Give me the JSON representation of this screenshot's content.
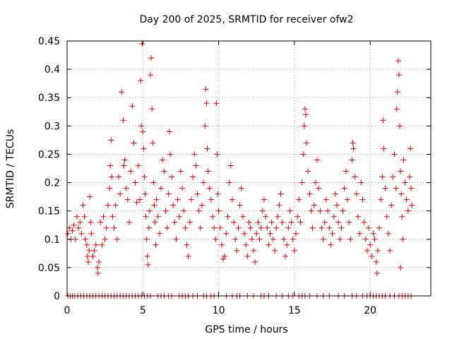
{
  "chart_data": {
    "type": "scatter",
    "title": "Day 200 of 2025, SRMTID for receiver ofw2",
    "xlabel": "GPS time / hours",
    "ylabel": "SRMTID / TECUs",
    "xlim": [
      0,
      24
    ],
    "ylim": [
      0,
      0.45
    ],
    "xticks": [
      0,
      5,
      10,
      15,
      20
    ],
    "xtick_labels": [
      "0",
      "5",
      "10",
      "15",
      "20"
    ],
    "yticks": [
      0,
      0.05,
      0.1,
      0.15,
      0.2,
      0.25,
      0.3,
      0.35,
      0.4,
      0.45
    ],
    "ytick_labels": [
      "0",
      "0.05",
      "0.1",
      "0.15",
      "0.2",
      "0.25",
      "0.3",
      "0.35",
      "0.4",
      "0.45"
    ],
    "grid": true,
    "marker": "plus",
    "series": [
      {
        "name": "SRMTID",
        "color": "#e00000",
        "points": [
          [
            0.05,
            0.11
          ],
          [
            0.15,
            0.12
          ],
          [
            0.25,
            0.1
          ],
          [
            0.35,
            0.115
          ],
          [
            0.45,
            0.125
          ],
          [
            0.55,
            0.1
          ],
          [
            0.65,
            0.14
          ],
          [
            0.75,
            0.12
          ],
          [
            0.85,
            0.13
          ],
          [
            0.95,
            0.11
          ],
          [
            1.05,
            0.16
          ],
          [
            1.15,
            0.14
          ],
          [
            1.2,
            0.1
          ],
          [
            1.3,
            0.09
          ],
          [
            1.35,
            0.07
          ],
          [
            1.4,
            0.06
          ],
          [
            1.45,
            0.08
          ],
          [
            1.5,
            0.175
          ],
          [
            1.55,
            0.13
          ],
          [
            1.6,
            0.11
          ],
          [
            1.7,
            0.07
          ],
          [
            1.8,
            0.08
          ],
          [
            1.9,
            0.09
          ],
          [
            2.0,
            0.05
          ],
          [
            2.05,
            0.04
          ],
          [
            2.1,
            0.06
          ],
          [
            2.2,
            0.13
          ],
          [
            2.3,
            0.09
          ],
          [
            2.4,
            0.14
          ],
          [
            2.5,
            0.1
          ],
          [
            2.6,
            0.12
          ],
          [
            2.7,
            0.16
          ],
          [
            2.8,
            0.19
          ],
          [
            2.85,
            0.23
          ],
          [
            2.9,
            0.275
          ],
          [
            2.95,
            0.21
          ],
          [
            3.0,
            0.14
          ],
          [
            3.1,
            0.12
          ],
          [
            3.2,
            0.16
          ],
          [
            3.3,
            0.1
          ],
          [
            3.4,
            0.21
          ],
          [
            3.5,
            0.18
          ],
          [
            3.6,
            0.36
          ],
          [
            3.7,
            0.31
          ],
          [
            3.75,
            0.23
          ],
          [
            3.8,
            0.24
          ],
          [
            3.9,
            0.19
          ],
          [
            4.0,
            0.17
          ],
          [
            4.1,
            0.13
          ],
          [
            4.2,
            0.22
          ],
          [
            4.3,
            0.335
          ],
          [
            4.4,
            0.27
          ],
          [
            4.5,
            0.2
          ],
          [
            4.6,
            0.165
          ],
          [
            4.7,
            0.23
          ],
          [
            4.8,
            0.17
          ],
          [
            4.85,
            0.38
          ],
          [
            4.9,
            0.3
          ],
          [
            4.95,
            0.445
          ],
          [
            5.0,
            0.29
          ],
          [
            5.05,
            0.26
          ],
          [
            5.1,
            0.21
          ],
          [
            5.15,
            0.18
          ],
          [
            5.2,
            0.14
          ],
          [
            5.25,
            0.1
          ],
          [
            5.3,
            0.07
          ],
          [
            5.35,
            0.055
          ],
          [
            5.4,
            0.12
          ],
          [
            5.45,
            0.15
          ],
          [
            5.5,
            0.39
          ],
          [
            5.55,
            0.42
          ],
          [
            5.6,
            0.33
          ],
          [
            5.65,
            0.27
          ],
          [
            5.7,
            0.2
          ],
          [
            5.75,
            0.16
          ],
          [
            5.8,
            0.13
          ],
          [
            5.85,
            0.09
          ],
          [
            5.9,
            0.17
          ],
          [
            6.0,
            0.14
          ],
          [
            6.1,
            0.11
          ],
          [
            6.2,
            0.19
          ],
          [
            6.3,
            0.24
          ],
          [
            6.4,
            0.22
          ],
          [
            6.5,
            0.15
          ],
          [
            6.6,
            0.12
          ],
          [
            6.7,
            0.18
          ],
          [
            6.75,
            0.29
          ],
          [
            6.8,
            0.25
          ],
          [
            6.9,
            0.21
          ],
          [
            7.0,
            0.16
          ],
          [
            7.1,
            0.13
          ],
          [
            7.2,
            0.1
          ],
          [
            7.3,
            0.17
          ],
          [
            7.4,
            0.14
          ],
          [
            7.5,
            0.22
          ],
          [
            7.6,
            0.19
          ],
          [
            7.7,
            0.15
          ],
          [
            7.8,
            0.12
          ],
          [
            7.9,
            0.09
          ],
          [
            8.0,
            0.07
          ],
          [
            8.1,
            0.13
          ],
          [
            8.2,
            0.17
          ],
          [
            8.3,
            0.21
          ],
          [
            8.4,
            0.25
          ],
          [
            8.5,
            0.23
          ],
          [
            8.6,
            0.18
          ],
          [
            8.7,
            0.15
          ],
          [
            8.8,
            0.12
          ],
          [
            8.9,
            0.16
          ],
          [
            9.0,
            0.2
          ],
          [
            9.1,
            0.3
          ],
          [
            9.15,
            0.365
          ],
          [
            9.2,
            0.34
          ],
          [
            9.25,
            0.26
          ],
          [
            9.3,
            0.22
          ],
          [
            9.4,
            0.19
          ],
          [
            9.5,
            0.17
          ],
          [
            9.6,
            0.14
          ],
          [
            9.7,
            0.12
          ],
          [
            9.8,
            0.1
          ],
          [
            9.85,
            0.34
          ],
          [
            9.9,
            0.25
          ],
          [
            9.95,
            0.18
          ],
          [
            10.0,
            0.15
          ],
          [
            10.1,
            0.12
          ],
          [
            10.2,
            0.09
          ],
          [
            10.3,
            0.065
          ],
          [
            10.4,
            0.07
          ],
          [
            10.5,
            0.11
          ],
          [
            10.6,
            0.14
          ],
          [
            10.7,
            0.2
          ],
          [
            10.8,
            0.23
          ],
          [
            10.9,
            0.17
          ],
          [
            11.0,
            0.13
          ],
          [
            11.1,
            0.1
          ],
          [
            11.2,
            0.08
          ],
          [
            11.3,
            0.12
          ],
          [
            11.4,
            0.16
          ],
          [
            11.5,
            0.19
          ],
          [
            11.6,
            0.14
          ],
          [
            11.7,
            0.11
          ],
          [
            11.8,
            0.09
          ],
          [
            11.9,
            0.07
          ],
          [
            12.0,
            0.13
          ],
          [
            12.1,
            0.12
          ],
          [
            12.2,
            0.1
          ],
          [
            12.3,
            0.08
          ],
          [
            12.4,
            0.06
          ],
          [
            12.5,
            0.11
          ],
          [
            12.6,
            0.13
          ],
          [
            12.7,
            0.1
          ],
          [
            12.8,
            0.12
          ],
          [
            12.9,
            0.15
          ],
          [
            13.0,
            0.17
          ],
          [
            13.1,
            0.14
          ],
          [
            13.2,
            0.12
          ],
          [
            13.3,
            0.09
          ],
          [
            13.4,
            0.11
          ],
          [
            13.5,
            0.13
          ],
          [
            13.6,
            0.1
          ],
          [
            13.7,
            0.08
          ],
          [
            13.8,
            0.12
          ],
          [
            13.9,
            0.14
          ],
          [
            14.0,
            0.16
          ],
          [
            14.1,
            0.18
          ],
          [
            14.2,
            0.13
          ],
          [
            14.3,
            0.1
          ],
          [
            14.4,
            0.07
          ],
          [
            14.5,
            0.09
          ],
          [
            14.6,
            0.12
          ],
          [
            14.7,
            0.15
          ],
          [
            14.8,
            0.13
          ],
          [
            14.9,
            0.1
          ],
          [
            15.0,
            0.08
          ],
          [
            15.1,
            0.11
          ],
          [
            15.2,
            0.14
          ],
          [
            15.3,
            0.17
          ],
          [
            15.4,
            0.13
          ],
          [
            15.5,
            0.2
          ],
          [
            15.6,
            0.25
          ],
          [
            15.65,
            0.3
          ],
          [
            15.7,
            0.33
          ],
          [
            15.75,
            0.32
          ],
          [
            15.8,
            0.27
          ],
          [
            15.9,
            0.22
          ],
          [
            16.0,
            0.18
          ],
          [
            16.1,
            0.15
          ],
          [
            16.2,
            0.12
          ],
          [
            16.3,
            0.16
          ],
          [
            16.4,
            0.2
          ],
          [
            16.5,
            0.24
          ],
          [
            16.6,
            0.19
          ],
          [
            16.7,
            0.15
          ],
          [
            16.8,
            0.12
          ],
          [
            16.9,
            0.1
          ],
          [
            17.0,
            0.13
          ],
          [
            17.1,
            0.17
          ],
          [
            17.2,
            0.15
          ],
          [
            17.3,
            0.12
          ],
          [
            17.4,
            0.09
          ],
          [
            17.5,
            0.11
          ],
          [
            17.6,
            0.14
          ],
          [
            17.7,
            0.18
          ],
          [
            17.8,
            0.16
          ],
          [
            17.9,
            0.13
          ],
          [
            18.0,
            0.1
          ],
          [
            18.1,
            0.12
          ],
          [
            18.2,
            0.15
          ],
          [
            18.3,
            0.19
          ],
          [
            18.4,
            0.22
          ],
          [
            18.5,
            0.17
          ],
          [
            18.6,
            0.13
          ],
          [
            18.7,
            0.1
          ],
          [
            18.8,
            0.24
          ],
          [
            18.85,
            0.27
          ],
          [
            18.9,
            0.26
          ],
          [
            19.0,
            0.21
          ],
          [
            19.1,
            0.18
          ],
          [
            19.2,
            0.14
          ],
          [
            19.3,
            0.11
          ],
          [
            19.4,
            0.2
          ],
          [
            19.5,
            0.17
          ],
          [
            19.6,
            0.13
          ],
          [
            19.7,
            0.1
          ],
          [
            19.8,
            0.08
          ],
          [
            19.9,
            0.12
          ],
          [
            20.0,
            0.09
          ],
          [
            20.1,
            0.07
          ],
          [
            20.2,
            0.11
          ],
          [
            20.3,
            0.1
          ],
          [
            20.4,
            0.06
          ],
          [
            20.45,
            0.04
          ],
          [
            20.5,
            0.08
          ],
          [
            20.6,
            0.12
          ],
          [
            20.7,
            0.17
          ],
          [
            20.8,
            0.21
          ],
          [
            20.85,
            0.31
          ],
          [
            20.9,
            0.26
          ],
          [
            21.0,
            0.19
          ],
          [
            21.1,
            0.14
          ],
          [
            21.2,
            0.11
          ],
          [
            21.3,
            0.08
          ],
          [
            21.4,
            0.16
          ],
          [
            21.5,
            0.21
          ],
          [
            21.6,
            0.25
          ],
          [
            21.7,
            0.19
          ],
          [
            21.75,
            0.33
          ],
          [
            21.8,
            0.36
          ],
          [
            21.85,
            0.415
          ],
          [
            21.9,
            0.39
          ],
          [
            21.95,
            0.3
          ],
          [
            22.0,
            0.22
          ],
          [
            22.05,
            0.18
          ],
          [
            22.1,
            0.14
          ],
          [
            22.15,
            0.1
          ],
          [
            22.0,
            0.05
          ],
          [
            22.2,
            0.24
          ],
          [
            22.3,
            0.2
          ],
          [
            22.4,
            0.17
          ],
          [
            22.5,
            0.15
          ],
          [
            22.6,
            0.21
          ],
          [
            22.65,
            0.26
          ],
          [
            22.7,
            0.19
          ],
          [
            22.75,
            0.16
          ]
        ]
      }
    ],
    "zero_points_x": [
      0.05,
      0.2,
      0.35,
      0.5,
      0.7,
      0.9,
      1.1,
      1.3,
      1.5,
      1.7,
      1.9,
      2.1,
      2.3,
      2.5,
      2.7,
      2.9,
      3.1,
      3.3,
      3.5,
      3.7,
      3.9,
      4.1,
      4.3,
      4.5,
      4.7,
      4.9,
      5.1,
      5.3,
      5.5,
      6.0,
      6.2,
      6.4,
      6.7,
      6.9,
      7.4,
      7.6,
      7.8,
      8.0,
      8.3,
      8.6,
      9.0,
      9.2,
      9.5,
      9.7,
      10.0,
      10.5,
      10.9,
      11.2,
      11.4,
      11.9,
      12.3,
      12.8,
      13.0,
      13.3,
      13.8,
      14.2,
      14.6,
      14.9,
      15.3,
      15.5,
      15.7,
      16.0,
      16.5,
      16.9,
      17.3,
      17.9,
      18.3,
      18.8,
      19.1,
      19.5,
      19.8,
      20.0,
      20.2,
      20.4,
      20.6,
      20.8,
      21.0,
      21.3,
      21.6,
      21.9,
      22.1,
      22.3,
      22.5,
      22.7
    ]
  }
}
